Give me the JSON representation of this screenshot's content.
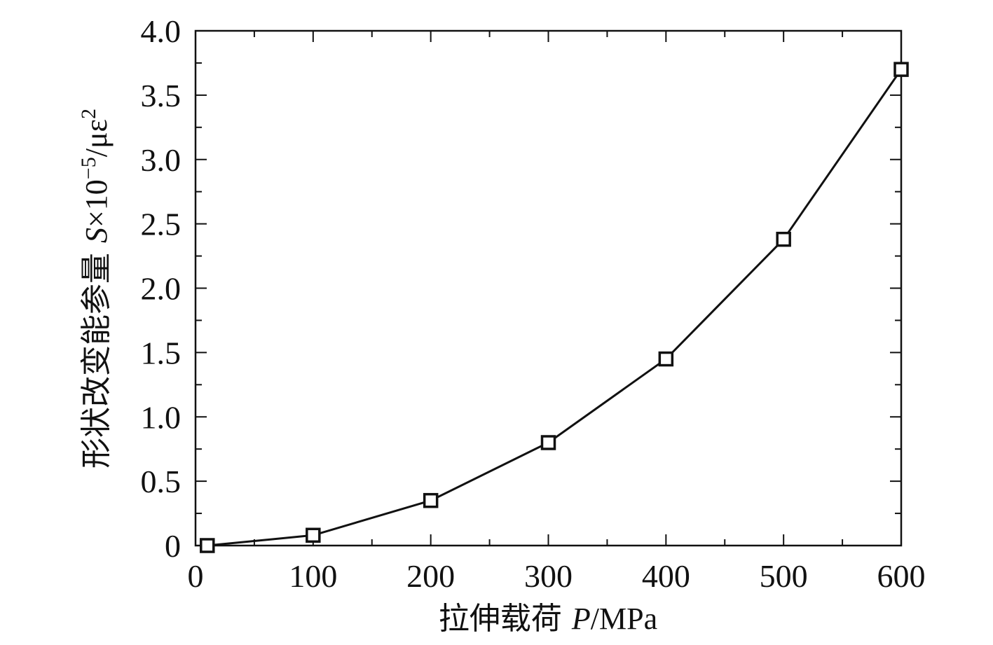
{
  "chart_data": {
    "type": "line",
    "x": [
      10,
      100,
      200,
      300,
      400,
      500,
      600
    ],
    "series": [
      {
        "values": [
          0.0,
          0.08,
          0.35,
          0.8,
          1.45,
          2.38,
          3.7
        ],
        "marker": "open-square",
        "color": "#111111"
      }
    ],
    "xlim": [
      0,
      600
    ],
    "ylim": [
      0,
      4.0
    ],
    "x_ticks": [
      0,
      100,
      200,
      300,
      400,
      500,
      600
    ],
    "x_tick_labels": [
      "0",
      "100",
      "200",
      "300",
      "400",
      "500",
      "600"
    ],
    "y_ticks": [
      0,
      0.5,
      1.0,
      1.5,
      2.0,
      2.5,
      3.0,
      3.5,
      4.0
    ],
    "y_tick_labels": [
      "0",
      "0.5",
      "1.0",
      "1.5",
      "2.0",
      "2.5",
      "3.0",
      "3.5",
      "4.0"
    ],
    "xlabel": {
      "prefix": "拉伸载荷 ",
      "var": "P",
      "suffix": "/MPa"
    },
    "ylabel": {
      "prefix": "形状改变能参量 ",
      "var": "S",
      "mid": "×10",
      "exp": "−5",
      "unit": "/με",
      "unit_exp": "2"
    },
    "grid": false,
    "legend": "none"
  }
}
